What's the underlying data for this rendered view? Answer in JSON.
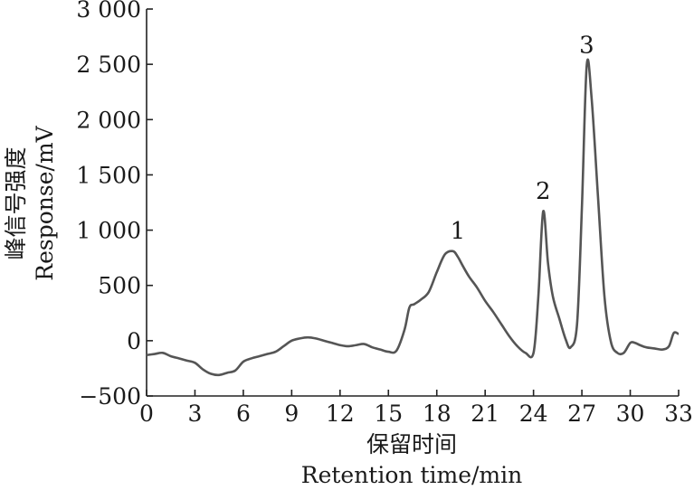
{
  "chart_data": {
    "type": "line",
    "title": "",
    "xlabel_cn": "保留时间",
    "xlabel_en": "Retention time/min",
    "ylabel_cn": "峰信号强度",
    "ylabel_en": "Response/mV",
    "xlim": [
      0,
      33
    ],
    "ylim": [
      -500,
      3000
    ],
    "x_ticks": [
      0,
      3,
      6,
      9,
      12,
      15,
      18,
      21,
      24,
      27,
      30,
      33
    ],
    "x_tick_labels": [
      "0",
      "3",
      "6",
      "9",
      "12",
      "15",
      "18",
      "21",
      "24",
      "27",
      "30",
      "33"
    ],
    "y_ticks": [
      -500,
      0,
      500,
      1000,
      1500,
      2000,
      2500,
      3000
    ],
    "y_tick_labels": [
      "−500",
      "0",
      "500",
      "1 000",
      "1 500",
      "2 000",
      "2 500",
      "3 000"
    ],
    "grid": false,
    "line_color": "#555555",
    "series": [
      {
        "x": [
          0,
          0.5,
          1.0,
          1.5,
          2.0,
          2.5,
          3.0,
          3.5,
          4.0,
          4.5,
          5.0,
          5.5,
          6.0,
          6.5,
          7.0,
          7.5,
          8.0,
          8.5,
          9.0,
          9.5,
          10.0,
          10.5,
          11.0,
          11.5,
          12.0,
          12.5,
          13.0,
          13.5,
          14.0,
          14.5,
          15.0,
          15.5,
          16.0,
          16.3,
          16.6,
          17.0,
          17.5,
          18.0,
          18.5,
          19.0,
          19.3,
          19.6,
          20.0,
          20.5,
          21.0,
          21.5,
          22.0,
          22.5,
          23.0,
          23.5,
          24.0,
          24.3,
          24.6,
          24.9,
          25.2,
          25.6,
          26.0,
          26.3,
          26.7,
          27.0,
          27.3,
          27.6,
          28.0,
          28.4,
          28.8,
          29.2,
          29.6,
          30.0,
          30.3,
          30.6,
          31.0,
          31.5,
          32.0,
          32.4,
          32.7,
          33.0
        ],
        "y": [
          -130,
          -120,
          -110,
          -140,
          -160,
          -180,
          -200,
          -260,
          -300,
          -310,
          -290,
          -270,
          -190,
          -160,
          -140,
          -120,
          -100,
          -50,
          0,
          20,
          30,
          20,
          0,
          -20,
          -40,
          -50,
          -40,
          -30,
          -60,
          -80,
          -100,
          -90,
          100,
          300,
          330,
          370,
          440,
          620,
          780,
          810,
          760,
          680,
          580,
          480,
          360,
          260,
          150,
          40,
          -50,
          -110,
          -110,
          400,
          1170,
          700,
          400,
          200,
          10,
          -60,
          150,
          1200,
          2490,
          2200,
          1300,
          400,
          -10,
          -110,
          -110,
          -20,
          -20,
          -40,
          -60,
          -70,
          -80,
          -50,
          70,
          60
        ]
      }
    ],
    "annotations": [
      {
        "text": "1",
        "x": 19.3,
        "y": 810
      },
      {
        "text": "2",
        "x": 24.6,
        "y": 1170
      },
      {
        "text": "3",
        "x": 27.3,
        "y": 2490
      }
    ]
  }
}
